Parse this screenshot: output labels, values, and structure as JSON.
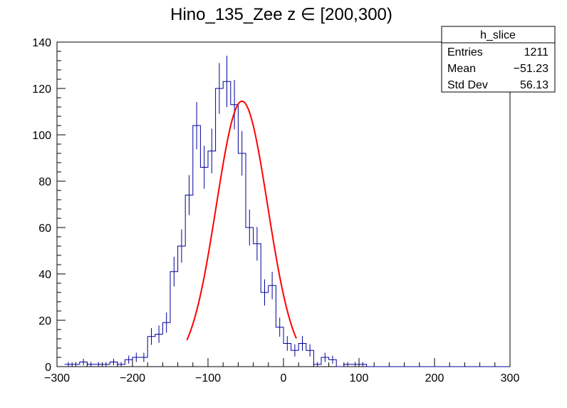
{
  "chart_data": {
    "type": "histogram",
    "title": "Hino_135_Zee z  ∈ [200,300)",
    "xlabel": "",
    "ylabel": "",
    "xlim": [
      -300,
      300
    ],
    "ylim": [
      0,
      140
    ],
    "x_ticks": [
      "−300",
      "−200",
      "−100",
      "0",
      "100",
      "200",
      "300"
    ],
    "x_tick_values": [
      -300,
      -200,
      -100,
      0,
      100,
      200,
      300
    ],
    "y_ticks": [
      "0",
      "20",
      "40",
      "60",
      "80",
      "100",
      "120",
      "140"
    ],
    "y_tick_values": [
      0,
      20,
      40,
      60,
      80,
      100,
      120,
      140
    ],
    "bin_width": 10,
    "bins_low_edge": [
      -290,
      -280,
      -270,
      -260,
      -250,
      -240,
      -230,
      -220,
      -210,
      -200,
      -190,
      -180,
      -170,
      -160,
      -150,
      -140,
      -130,
      -120,
      -110,
      -100,
      -90,
      -80,
      -70,
      -60,
      -50,
      -40,
      -30,
      -20,
      -10,
      0,
      10,
      20,
      30,
      40,
      50,
      60,
      70,
      80,
      90,
      100,
      110,
      120,
      130,
      140,
      150,
      160,
      170,
      180,
      190,
      200,
      210,
      220,
      230,
      240,
      250,
      260,
      270,
      280,
      290
    ],
    "counts": [
      1,
      1,
      2,
      1,
      1,
      1,
      2,
      1,
      3,
      4,
      4,
      13,
      14,
      19,
      41,
      52,
      74,
      104,
      86,
      93,
      120,
      123,
      113,
      92,
      60,
      53,
      32,
      35,
      17,
      10,
      7,
      10,
      7,
      1,
      4,
      3,
      0,
      1,
      1,
      1,
      0,
      0,
      0,
      0,
      0,
      0,
      0,
      0,
      0,
      0,
      0,
      0,
      0,
      0,
      0,
      0,
      0,
      0,
      0
    ],
    "fit": {
      "function": "gaus",
      "constant": 114.5,
      "mean": -55,
      "sigma": 34,
      "range": [
        -128,
        17
      ],
      "color": "#ff0000"
    },
    "line_color": "#000099",
    "stats_box": {
      "name": "h_slice",
      "rows": [
        {
          "label": "Entries",
          "value": "1211"
        },
        {
          "label": "Mean",
          "value": "−51.23"
        },
        {
          "label": "Std Dev",
          "value": "56.13"
        }
      ]
    }
  }
}
